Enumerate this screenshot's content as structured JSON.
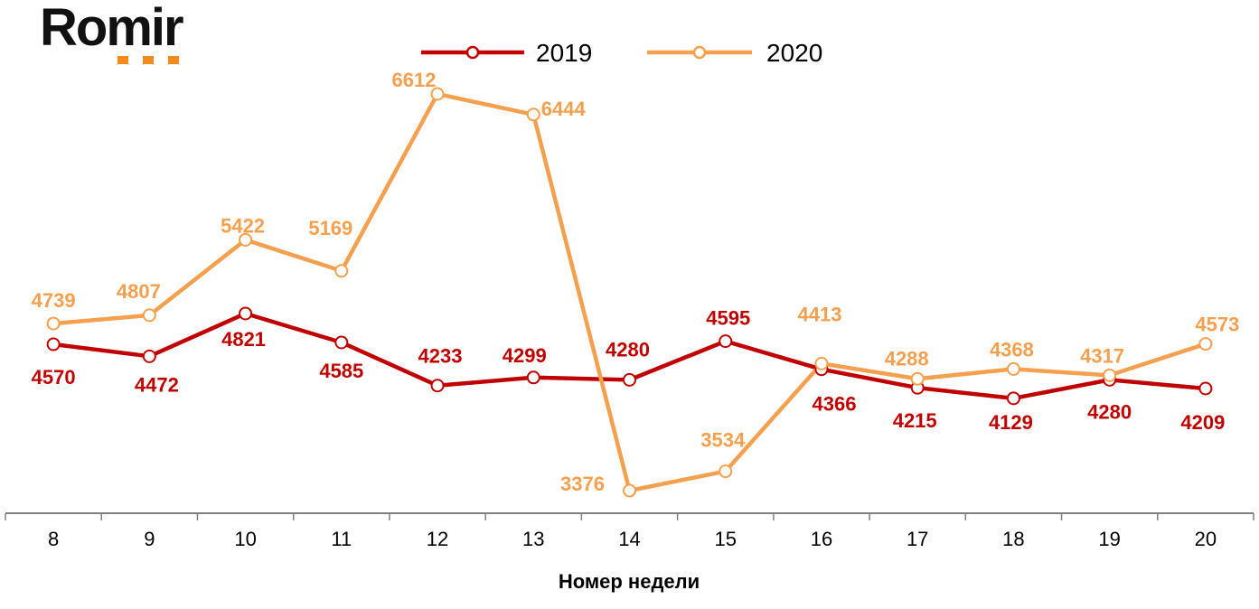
{
  "logo": {
    "text": "Romir",
    "dot_color": "#f28a1e"
  },
  "chart_data": {
    "type": "line",
    "xlabel": "Номер недели",
    "ylabel": "",
    "categories": [
      "8",
      "9",
      "10",
      "11",
      "12",
      "13",
      "14",
      "15",
      "16",
      "17",
      "18",
      "19",
      "20"
    ],
    "ylim": [
      3300,
      6850
    ],
    "grid": false,
    "legend_position": "top-center",
    "series": [
      {
        "name": "2019",
        "color": "#c00000",
        "values": [
          4570,
          4472,
          4821,
          4585,
          4233,
          4299,
          4280,
          4595,
          4366,
          4215,
          4129,
          4280,
          4209
        ]
      },
      {
        "name": "2020",
        "color": "#f4a04e",
        "values": [
          4739,
          4807,
          5422,
          5169,
          6612,
          6444,
          3376,
          3534,
          4413,
          4288,
          4368,
          4317,
          4573
        ]
      }
    ]
  }
}
